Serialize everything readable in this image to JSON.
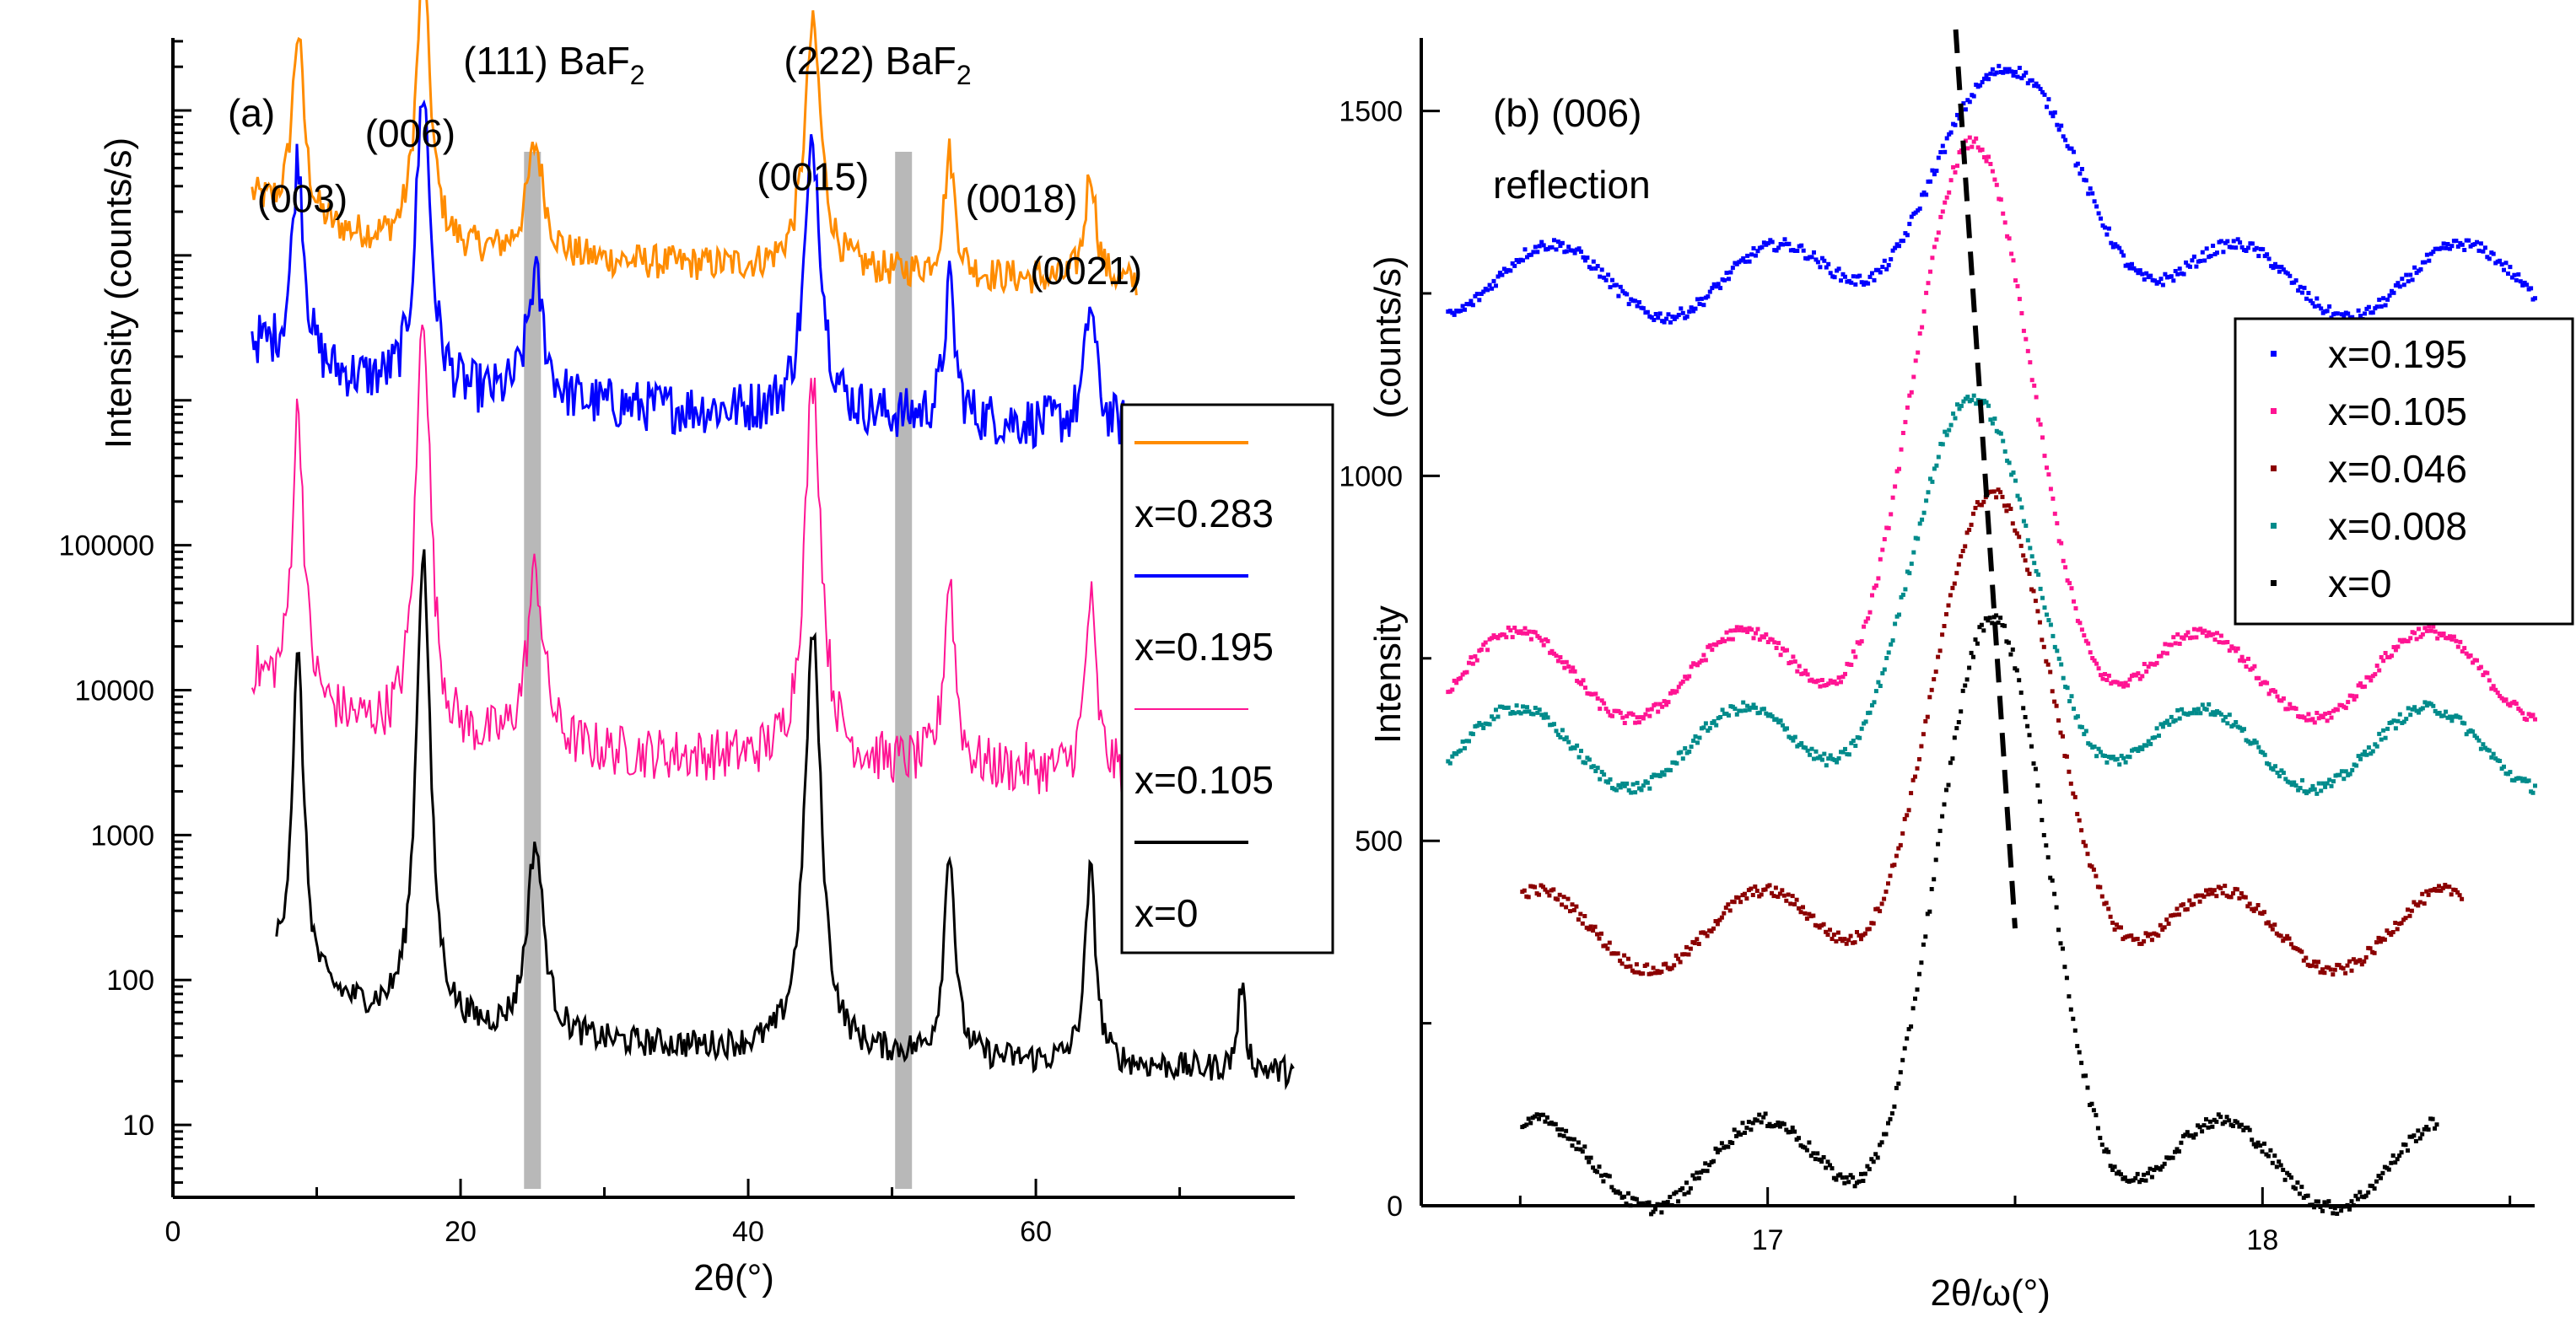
{
  "chart_data": [
    {
      "panel": "a",
      "type": "line",
      "title": "(a)",
      "xlabel": "2θ(°)",
      "ylabel": "Intensity (counts/s)",
      "yscale": "log",
      "xlim": [
        0,
        78
      ],
      "ylim_log10": [
        0.5,
        8.5
      ],
      "xticks": [
        0,
        20,
        40,
        60
      ],
      "xtick_labels": [
        "0",
        "20",
        "40",
        "60"
      ],
      "yticks": [
        1,
        2,
        3,
        4,
        5
      ],
      "ytick_labels": [
        "10",
        "100",
        "1000",
        "10000",
        "100000"
      ],
      "substrate_band_x": [
        25,
        50.8
      ],
      "annotations": [
        {
          "text": "(003)",
          "x": 9,
          "ylog": 7.3
        },
        {
          "text": "(006)",
          "x": 16.5,
          "ylog": 7.75
        },
        {
          "text": "(111) BaF",
          "sub": "2",
          "x": 26.5,
          "ylog": 8.25
        },
        {
          "text": "(222) BaF",
          "sub": "2",
          "x": 49,
          "ylog": 8.25
        },
        {
          "text": "(0015)",
          "x": 44.5,
          "ylog": 7.45
        },
        {
          "text": "(0018)",
          "x": 59,
          "ylog": 7.3
        },
        {
          "text": "(0021)",
          "x": 63.5,
          "ylog": 6.8
        }
      ],
      "peaks": [
        {
          "x": 8.7,
          "w": 0.5,
          "rel": 0.92
        },
        {
          "x": 17.4,
          "w": 0.6,
          "rel": 1.35
        },
        {
          "x": 25.2,
          "w": 0.7,
          "rel": 0.55
        },
        {
          "x": 44.5,
          "w": 0.7,
          "rel": 1.2
        },
        {
          "x": 54.0,
          "w": 0.45,
          "rel": 0.6
        },
        {
          "x": 63.8,
          "w": 0.45,
          "rel": 0.55
        },
        {
          "x": 74.3,
          "w": 0.3,
          "rel": 0.25
        }
      ],
      "series": [
        {
          "name": "x=0.283",
          "color": "#ff8c00",
          "x_range": [
            5.5,
            67
          ],
          "base_log": 6.95,
          "decay": 0.35,
          "noise": 0.12,
          "peak_scale": 1.4
        },
        {
          "name": "x=0.195",
          "color": "#0000ff",
          "x_range": [
            5.5,
            67
          ],
          "base_log": 5.95,
          "decay": 0.35,
          "noise": 0.18,
          "peak_scale": 1.55
        },
        {
          "name": "x=0.105",
          "color": "#ff1493",
          "x_range": [
            5.5,
            67
          ],
          "base_log": 3.55,
          "decay": 0.45,
          "noise": 0.18,
          "peak_scale": 2.2
        },
        {
          "name": "x=0",
          "color": "#000000",
          "x_range": [
            7.2,
            78
          ],
          "base_log": 1.55,
          "decay": 0.45,
          "noise": 0.1,
          "peak_scale": 2.3
        }
      ],
      "legend": [
        "x=0.283",
        "x=0.195",
        "x=0.105",
        "x=0"
      ],
      "legend_placement": "right"
    },
    {
      "panel": "b",
      "type": "scatter",
      "title": "(b) (006)",
      "title_line2": "reflection",
      "xlabel": "2θ/ω(°)",
      "ylabel": "Intensity",
      "ylabel2": "(counts/s)",
      "xlim": [
        16.3,
        18.55
      ],
      "ylim": [
        0,
        1600
      ],
      "xticks": [
        17,
        18
      ],
      "xtick_labels": [
        "17",
        "18"
      ],
      "yticks": [
        0,
        500,
        1000,
        1500
      ],
      "ytick_labels": [
        "0",
        "500",
        "1000",
        "1500"
      ],
      "guide_line": {
        "x_top": 17.38,
        "y_top": 1600,
        "x_bottom": 17.5,
        "y_bottom": 380
      },
      "series": [
        {
          "name": "x=0.195",
          "color": "#0000ff",
          "x_range": [
            16.35,
            18.55
          ],
          "center": 17.48,
          "peak": 1560,
          "base": 1270,
          "width": 0.18,
          "osc_amp": 50,
          "noise": 8
        },
        {
          "name": "x=0.105",
          "color": "#ff1493",
          "x_range": [
            16.35,
            18.55
          ],
          "center": 17.41,
          "peak": 1460,
          "base": 730,
          "width": 0.15,
          "osc_amp": 60,
          "noise": 8
        },
        {
          "name": "x=0.046",
          "color": "#8b0000",
          "x_range": [
            16.5,
            18.4
          ],
          "center": 17.45,
          "peak": 980,
          "base": 380,
          "width": 0.15,
          "osc_amp": 55,
          "noise": 8
        },
        {
          "name": "x=0.008",
          "color": "#008b8b",
          "x_range": [
            16.35,
            18.55
          ],
          "center": 17.41,
          "peak": 1110,
          "base": 630,
          "width": 0.15,
          "osc_amp": 55,
          "noise": 8
        },
        {
          "name": "x=0",
          "color": "#000000",
          "x_range": [
            16.5,
            18.35
          ],
          "center": 17.45,
          "peak": 810,
          "base": 60,
          "width": 0.14,
          "osc_amp": 60,
          "noise": 9
        }
      ],
      "legend": [
        "x=0.195",
        "x=0.105",
        "x=0.046",
        "x=0.008",
        "x=0"
      ],
      "legend_placement": "right"
    }
  ]
}
